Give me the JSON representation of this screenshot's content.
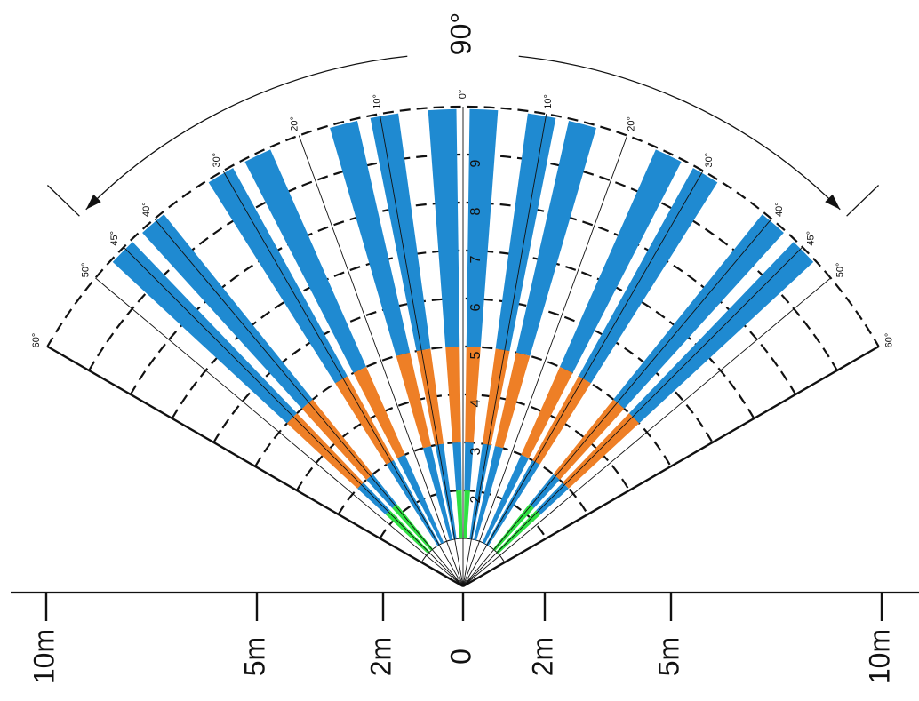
{
  "coverage_angle_label": "90°",
  "angle_labels": [
    {
      "text": "0°",
      "deg": 0
    },
    {
      "text": "10°",
      "deg": 10
    },
    {
      "text": "20°",
      "deg": 20
    },
    {
      "text": "30°",
      "deg": 30
    },
    {
      "text": "40°",
      "deg": 40
    },
    {
      "text": "45°",
      "deg": 45
    },
    {
      "text": "50°",
      "deg": 50
    },
    {
      "text": "60°",
      "deg": 60
    },
    {
      "text": "10°",
      "deg": -10
    },
    {
      "text": "20°",
      "deg": -20
    },
    {
      "text": "30°",
      "deg": -30
    },
    {
      "text": "40°",
      "deg": -40
    },
    {
      "text": "45°",
      "deg": -45
    },
    {
      "text": "50°",
      "deg": -50
    },
    {
      "text": "60°",
      "deg": -60
    }
  ],
  "ring_numbers": [
    "2",
    "3",
    "4",
    "5",
    "6",
    "7",
    "8",
    "9"
  ],
  "scale_labels": [
    {
      "text": "10m",
      "offset_m": -10
    },
    {
      "text": "5m",
      "offset_m": -5
    },
    {
      "text": "2m",
      "offset_m": -2
    },
    {
      "text": "0",
      "offset_m": 0
    },
    {
      "text": "2m",
      "offset_m": 2
    },
    {
      "text": "5m",
      "offset_m": 5
    },
    {
      "text": "10m",
      "offset_m": 10
    }
  ],
  "zones": [
    {
      "center_deg": 0,
      "near_m": 1.0,
      "green_to_m": 2.0,
      "orange_to_m": 5.0,
      "blue_to_m": 10.0
    },
    {
      "center_deg": 12,
      "near_m": 1.0,
      "green_to_m": 1.0,
      "orange_to_m": 5.0,
      "blue_to_m": 10.0
    },
    {
      "center_deg": 28,
      "near_m": 1.0,
      "green_to_m": 1.0,
      "orange_to_m": 5.0,
      "blue_to_m": 10.0
    },
    {
      "center_deg": 43,
      "near_m": 1.0,
      "green_to_m": 2.2,
      "orange_to_m": 5.0,
      "blue_to_m": 10.0
    },
    {
      "center_deg": -12,
      "near_m": 1.0,
      "green_to_m": 1.0,
      "orange_to_m": 5.0,
      "blue_to_m": 10.0
    },
    {
      "center_deg": -28,
      "near_m": 1.0,
      "green_to_m": 1.0,
      "orange_to_m": 5.0,
      "blue_to_m": 10.0
    },
    {
      "center_deg": -43,
      "near_m": 1.0,
      "green_to_m": 2.2,
      "orange_to_m": 5.0,
      "blue_to_m": 10.0
    }
  ],
  "colors": {
    "blue": "#1f8ad1",
    "orange": "#ee7f26",
    "green": "#2fe042",
    "line": "#111111"
  }
}
